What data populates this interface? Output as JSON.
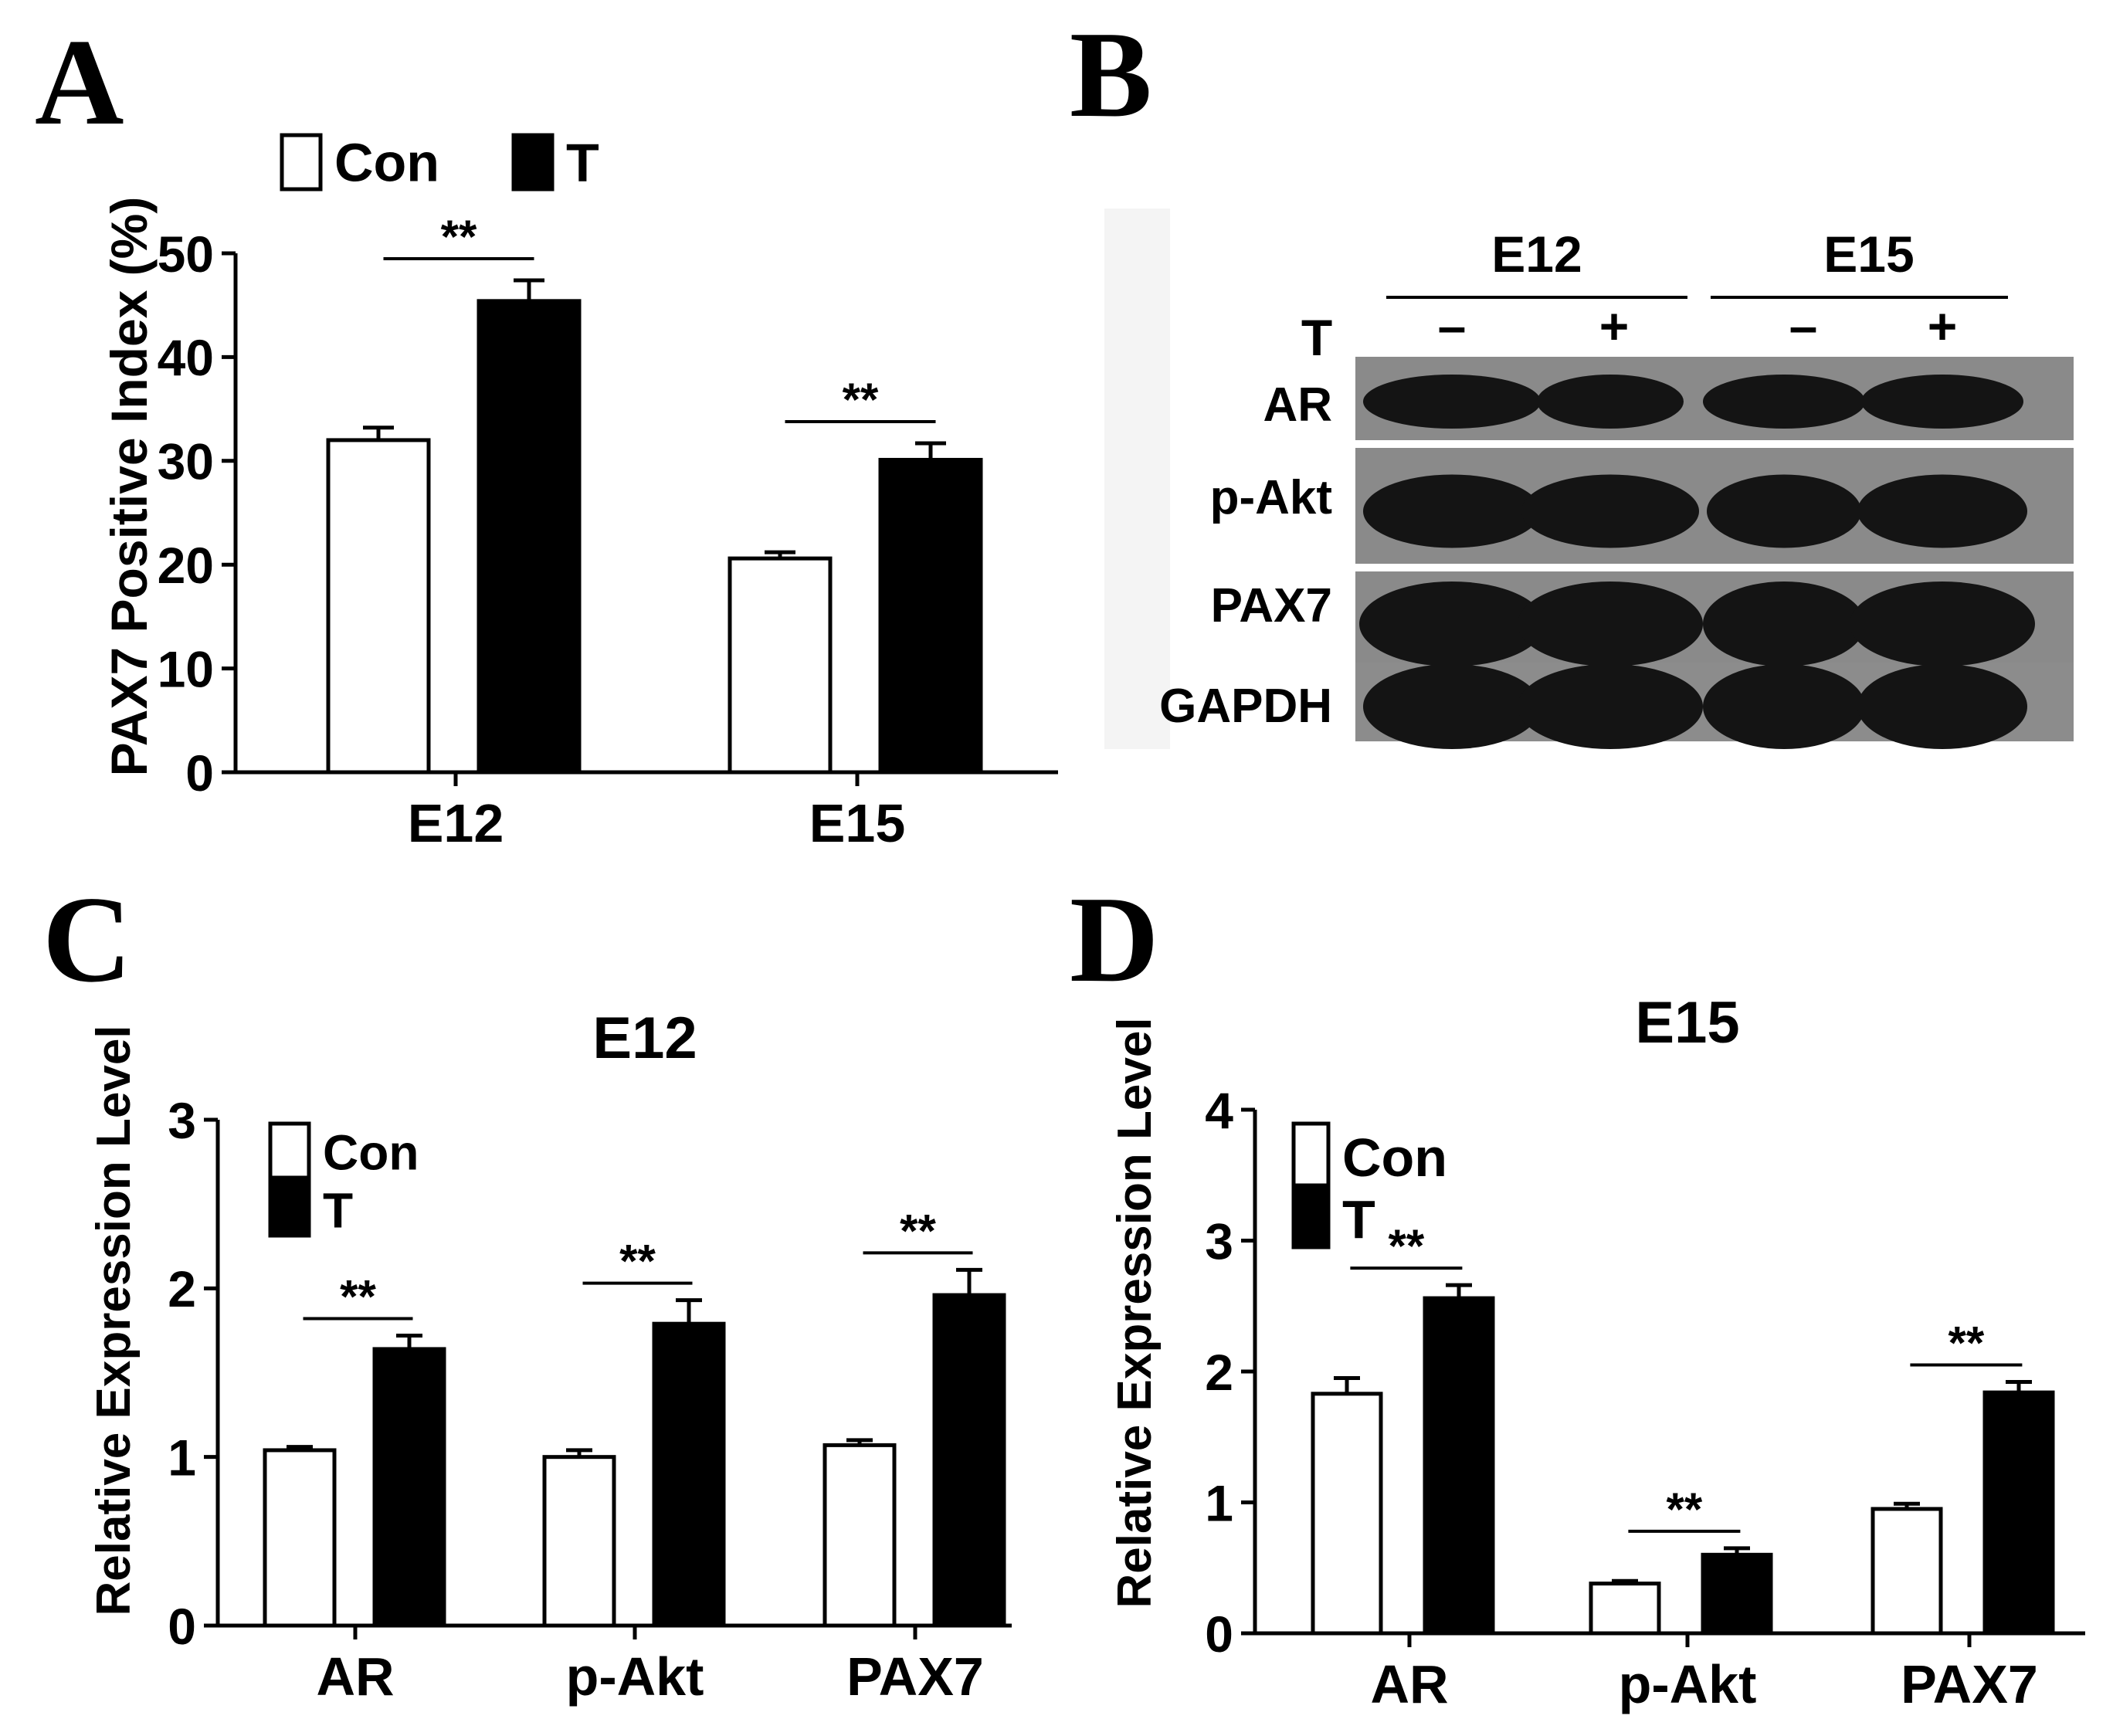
{
  "panel_letters": [
    "A",
    "B",
    "C",
    "D"
  ],
  "colors": {
    "con_fill": "#ffffff",
    "t_fill": "#000000",
    "stroke": "#000000"
  },
  "blot": {
    "group_labels": [
      "E12",
      "E15"
    ],
    "treatment_label": "T",
    "treatment_signs": [
      "–",
      "+",
      "–",
      "+"
    ],
    "rows": [
      "AR",
      "p-Akt",
      "PAX7",
      "GAPDH"
    ]
  },
  "chart_data": [
    {
      "panel": "A",
      "type": "bar",
      "title": "",
      "xlabel": "",
      "ylabel": "PAX7 Positive Index (%)",
      "ylim": [
        0,
        50
      ],
      "yticks": [
        "0",
        "10",
        "20",
        "30",
        "40",
        "50"
      ],
      "categories": [
        "E12",
        "E15"
      ],
      "series": [
        {
          "name": "Con",
          "values": [
            32,
            20.6
          ],
          "errors": [
            1.2,
            0.6
          ]
        },
        {
          "name": "T",
          "values": [
            45.4,
            30.1
          ],
          "errors": [
            2.0,
            1.6
          ]
        }
      ],
      "significance": [
        "**",
        "**"
      ],
      "legend": "top-left"
    },
    {
      "panel": "C",
      "type": "bar",
      "title": "E12",
      "xlabel": "",
      "ylabel": "Relative Expression Level",
      "ylim": [
        0,
        3
      ],
      "yticks": [
        "0",
        "1",
        "2",
        "3"
      ],
      "categories": [
        "AR",
        "p-Akt",
        "PAX7"
      ],
      "series": [
        {
          "name": "Con",
          "values": [
            1.04,
            1.0,
            1.07
          ],
          "errors": [
            0.02,
            0.04,
            0.03
          ]
        },
        {
          "name": "T",
          "values": [
            1.64,
            1.79,
            1.96
          ],
          "errors": [
            0.08,
            0.14,
            0.15
          ]
        }
      ],
      "significance": [
        "**",
        "**",
        "**"
      ],
      "legend": "top-left"
    },
    {
      "panel": "D",
      "type": "bar",
      "title": "E15",
      "xlabel": "",
      "ylabel": "Relative Expression Level",
      "ylim": [
        0,
        4
      ],
      "yticks": [
        "0",
        "1",
        "2",
        "3",
        "4"
      ],
      "categories": [
        "AR",
        "p-Akt",
        "PAX7"
      ],
      "series": [
        {
          "name": "Con",
          "values": [
            1.83,
            0.38,
            0.95
          ],
          "errors": [
            0.12,
            0.02,
            0.04
          ]
        },
        {
          "name": "T",
          "values": [
            2.56,
            0.6,
            1.84
          ],
          "errors": [
            0.1,
            0.05,
            0.08
          ]
        }
      ],
      "significance": [
        "**",
        "**",
        "**"
      ],
      "legend": "top-left"
    }
  ]
}
